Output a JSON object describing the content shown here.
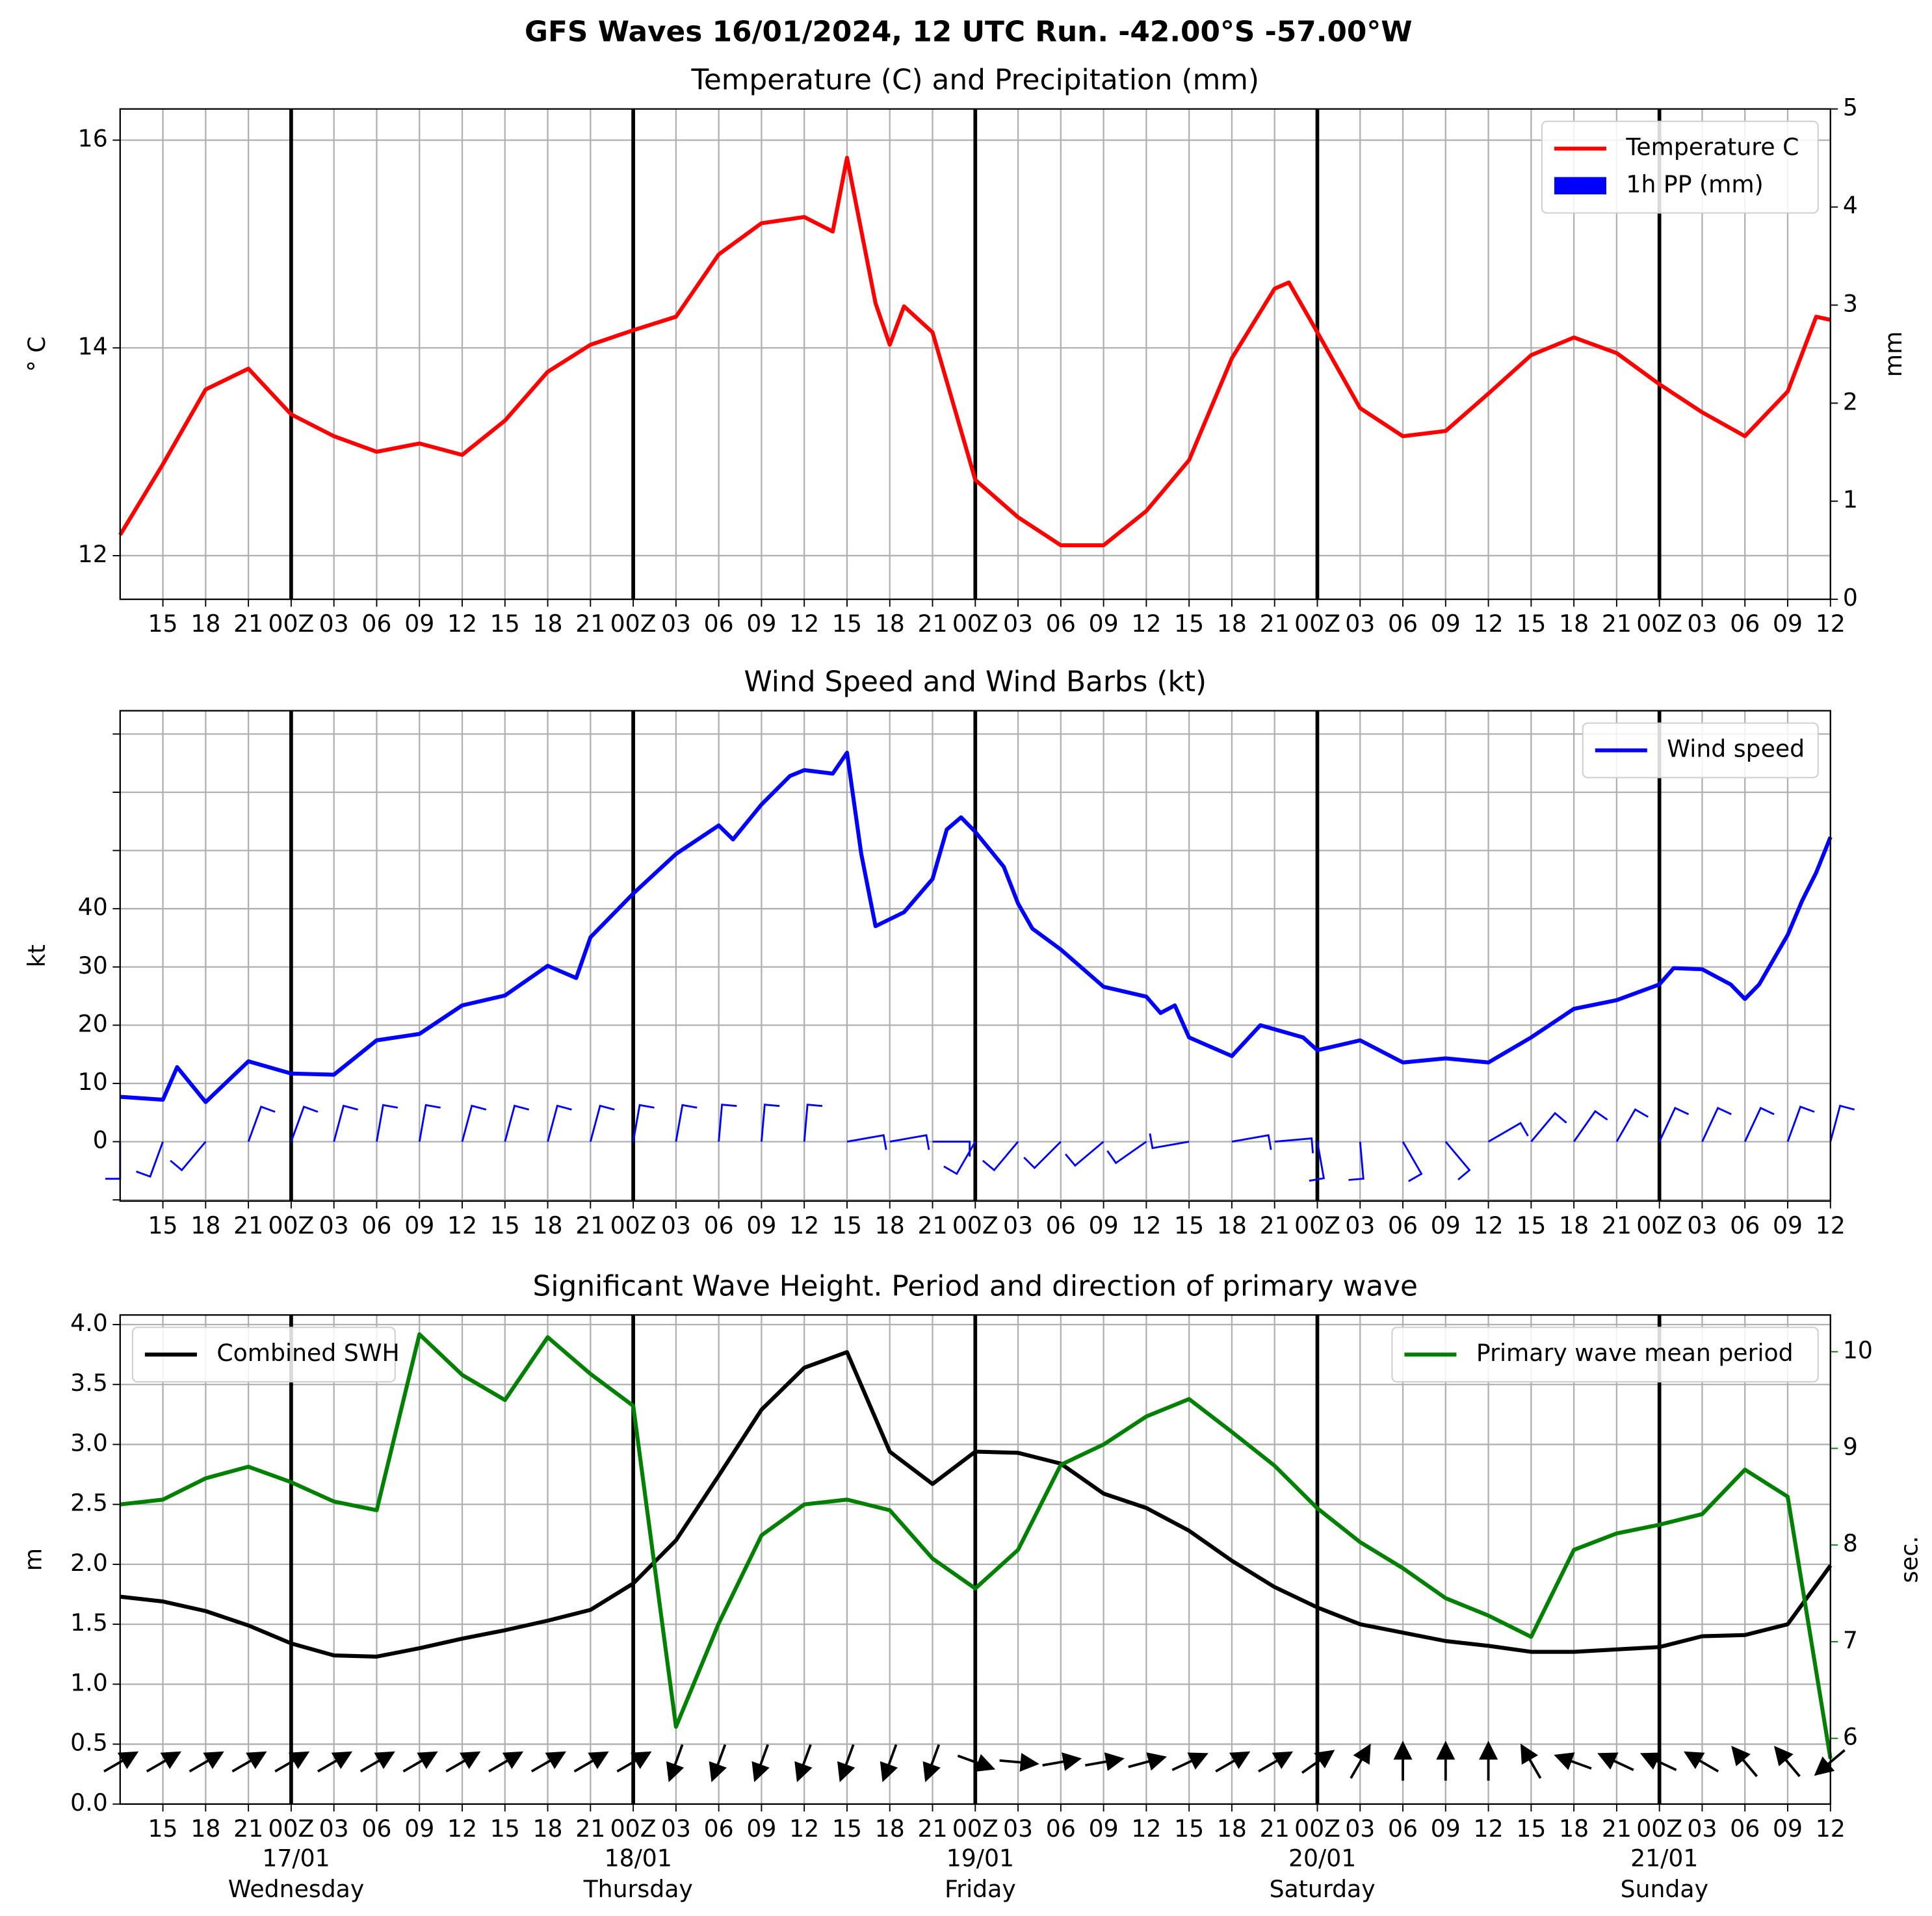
{
  "title": "GFS Waves 16/01/2024, 12 UTC Run. -42.00°S -57.00°W",
  "x_axis": {
    "xlim": [
      0,
      120
    ],
    "xticks": [
      {
        "value": 3,
        "label": "15"
      },
      {
        "value": 6,
        "label": "18"
      },
      {
        "value": 9,
        "label": "21"
      },
      {
        "value": 12,
        "label": "00Z"
      },
      {
        "value": 15,
        "label": "03"
      },
      {
        "value": 18,
        "label": "06"
      },
      {
        "value": 21,
        "label": "09"
      },
      {
        "value": 24,
        "label": "12"
      },
      {
        "value": 27,
        "label": "15"
      },
      {
        "value": 30,
        "label": "18"
      },
      {
        "value": 33,
        "label": "21"
      },
      {
        "value": 36,
        "label": "00Z"
      },
      {
        "value": 39,
        "label": "03"
      },
      {
        "value": 42,
        "label": "06"
      },
      {
        "value": 45,
        "label": "09"
      },
      {
        "value": 48,
        "label": "12"
      },
      {
        "value": 51,
        "label": "15"
      },
      {
        "value": 54,
        "label": "18"
      },
      {
        "value": 57,
        "label": "21"
      },
      {
        "value": 60,
        "label": "00Z"
      },
      {
        "value": 63,
        "label": "03"
      },
      {
        "value": 66,
        "label": "06"
      },
      {
        "value": 69,
        "label": "09"
      },
      {
        "value": 72,
        "label": "12"
      },
      {
        "value": 75,
        "label": "15"
      },
      {
        "value": 78,
        "label": "18"
      },
      {
        "value": 81,
        "label": "21"
      },
      {
        "value": 84,
        "label": "00Z"
      },
      {
        "value": 87,
        "label": "03"
      },
      {
        "value": 90,
        "label": "06"
      },
      {
        "value": 93,
        "label": "09"
      },
      {
        "value": 96,
        "label": "12"
      },
      {
        "value": 99,
        "label": "15"
      },
      {
        "value": 102,
        "label": "18"
      },
      {
        "value": 105,
        "label": "21"
      },
      {
        "value": 108,
        "label": "00Z"
      },
      {
        "value": 111,
        "label": "03"
      },
      {
        "value": 114,
        "label": "06"
      },
      {
        "value": 117,
        "label": "09"
      },
      {
        "value": 120,
        "label": "12"
      }
    ],
    "day_lines": [
      12,
      36,
      60,
      84,
      108
    ],
    "day_labels": [
      {
        "x": 12,
        "date": "17/01",
        "weekday": "Wednesday"
      },
      {
        "x": 36,
        "date": "18/01",
        "weekday": "Thursday"
      },
      {
        "x": 60,
        "date": "19/01",
        "weekday": "Friday"
      },
      {
        "x": 84,
        "date": "20/01",
        "weekday": "Saturday"
      },
      {
        "x": 108,
        "date": "21/01",
        "weekday": "Sunday"
      }
    ]
  },
  "chart_data": [
    {
      "type": "line",
      "title": "Temperature (C) and Precipitation (mm)",
      "ylabel": "° C",
      "y2label": "mm",
      "ylim": [
        11.58,
        16.3
      ],
      "yticks": [
        12,
        14,
        16
      ],
      "y2lim": [
        0,
        5
      ],
      "y2ticks": [
        0,
        1,
        2,
        3,
        4,
        5
      ],
      "grid": true,
      "legend": "upper right",
      "series": [
        {
          "name": "Temperature C",
          "color": "red",
          "x": [
            0,
            3,
            6,
            9,
            12,
            15,
            18,
            21,
            24,
            27,
            30,
            33,
            36,
            39,
            42,
            45,
            48,
            50,
            51,
            53,
            54,
            55,
            57,
            60,
            63,
            66,
            69,
            72,
            75,
            78,
            81,
            82,
            84,
            87,
            90,
            93,
            96,
            99,
            102,
            105,
            108,
            111,
            114,
            117,
            119,
            120
          ],
          "values": [
            12.2,
            12.88,
            13.6,
            13.8,
            13.36,
            13.15,
            13.0,
            13.08,
            12.97,
            13.3,
            13.77,
            14.03,
            14.17,
            14.3,
            14.9,
            15.2,
            15.26,
            15.12,
            15.83,
            14.43,
            14.03,
            14.4,
            14.15,
            12.73,
            12.37,
            12.1,
            12.1,
            12.43,
            12.92,
            13.9,
            14.57,
            14.63,
            14.15,
            13.42,
            13.15,
            13.2,
            13.56,
            13.93,
            14.1,
            13.95,
            13.65,
            13.38,
            13.15,
            13.58,
            14.3,
            14.27
          ]
        },
        {
          "name": "1h PP (mm)",
          "color": "blue",
          "type": "bar",
          "axis": "y2",
          "x": [
            0,
            3,
            6,
            9,
            12,
            15,
            18,
            21,
            24,
            27,
            30,
            33,
            36,
            39,
            42,
            45,
            48,
            51,
            54,
            57,
            60,
            63,
            66,
            69,
            72,
            75,
            78,
            81,
            84,
            87,
            90,
            93,
            96,
            99,
            102,
            105,
            108,
            111,
            114,
            117,
            120
          ],
          "values": [
            0,
            0,
            0,
            0,
            0,
            0,
            0,
            0,
            0,
            0,
            0,
            0,
            0,
            0,
            0,
            0,
            0,
            0,
            0,
            0,
            0,
            0,
            0,
            0,
            0,
            0,
            0,
            0,
            0,
            0,
            0,
            0,
            0,
            0,
            0,
            0,
            0,
            0,
            0,
            0,
            0
          ]
        }
      ]
    },
    {
      "type": "line",
      "title": "Wind Speed and Wind Barbs (kt)",
      "ylabel": "kt",
      "ylim": [
        -10.2,
        74
      ],
      "yticks": [
        0,
        10,
        20,
        30,
        40
      ],
      "minor_yticks": [
        -10,
        50,
        60,
        70
      ],
      "grid": true,
      "legend": "upper right",
      "series": [
        {
          "name": "Wind speed",
          "color": "blue",
          "x": [
            0,
            3,
            4,
            6,
            9,
            12,
            15,
            18,
            21,
            24,
            27,
            30,
            32,
            33,
            36,
            39,
            42,
            43,
            45,
            47,
            48,
            50,
            51,
            52,
            53,
            55,
            57,
            58,
            59,
            60,
            62,
            63,
            64,
            66,
            69,
            72,
            73,
            74,
            75,
            78,
            80,
            83,
            84,
            87,
            90,
            93,
            96,
            99,
            102,
            105,
            108,
            109,
            111,
            113,
            114,
            115,
            117,
            118,
            119,
            120
          ],
          "values": [
            7.7,
            7.2,
            12.8,
            6.8,
            13.8,
            11.7,
            11.5,
            17.4,
            18.5,
            23.4,
            25.1,
            30.2,
            28.1,
            35.1,
            42.6,
            49.4,
            54.3,
            51.9,
            57.9,
            62.8,
            63.8,
            63.2,
            66.8,
            49.4,
            37.0,
            39.4,
            45.1,
            53.6,
            55.7,
            53.2,
            47.2,
            40.9,
            36.6,
            33.0,
            26.6,
            24.9,
            22.1,
            23.4,
            17.9,
            14.7,
            20.0,
            17.9,
            15.7,
            17.4,
            13.6,
            14.3,
            13.6,
            17.9,
            22.8,
            24.3,
            27.0,
            29.8,
            29.6,
            27.0,
            24.5,
            27.0,
            35.5,
            41.3,
            46.2,
            52.3
          ]
        }
      ],
      "barbs": {
        "color": "blue",
        "x": [
          0,
          3,
          6,
          9,
          12,
          15,
          18,
          21,
          24,
          27,
          30,
          33,
          36,
          39,
          42,
          45,
          48,
          51,
          54,
          57,
          60,
          63,
          66,
          69,
          72,
          75,
          78,
          81,
          84,
          87,
          90,
          93,
          96,
          99,
          102,
          105,
          108,
          111,
          114,
          117,
          120
        ],
        "direction": [
          180,
          200,
          220,
          20,
          20,
          15,
          10,
          10,
          15,
          15,
          15,
          15,
          10,
          10,
          5,
          5,
          5,
          80,
          80,
          90,
          210,
          220,
          225,
          230,
          235,
          260,
          80,
          85,
          170,
          175,
          150,
          140,
          60,
          40,
          35,
          30,
          25,
          25,
          25,
          20,
          15
        ]
      }
    },
    {
      "type": "line",
      "title": "Significant Wave Height. Period and direction of primary wave",
      "ylabel": "m",
      "y2label": "sec.",
      "y2color": "green",
      "ylim": [
        0,
        4.08
      ],
      "yticks": [
        {
          "value": 0,
          "label": "0.0"
        },
        0.5,
        {
          "value": 1,
          "label": "1.0"
        },
        1.5,
        {
          "value": 2,
          "label": "2.0"
        },
        2.5,
        {
          "value": 3,
          "label": "3.0"
        },
        3.5,
        {
          "value": 4,
          "label": "4.0"
        }
      ],
      "y2lim": [
        5.32,
        10.38
      ],
      "y2ticks": [
        6,
        7,
        8,
        9,
        10
      ],
      "grid": true,
      "legend": "upper left",
      "legend_y2": "upper right",
      "x": [
        0,
        3,
        6,
        9,
        12,
        15,
        18,
        21,
        24,
        27,
        30,
        33,
        36,
        39,
        42,
        45,
        48,
        51,
        54,
        57,
        60,
        63,
        66,
        69,
        72,
        75,
        78,
        81,
        84,
        87,
        90,
        93,
        96,
        99,
        102,
        105,
        108,
        111,
        114,
        117,
        120
      ],
      "series": [
        {
          "name": "Combined SWH",
          "color": "black",
          "values": [
            1.73,
            1.69,
            1.61,
            1.49,
            1.34,
            1.24,
            1.23,
            1.3,
            1.38,
            1.45,
            1.53,
            1.62,
            1.84,
            2.2,
            2.74,
            3.29,
            3.64,
            3.77,
            2.94,
            2.67,
            2.94,
            2.93,
            2.84,
            2.59,
            2.47,
            2.28,
            2.03,
            1.81,
            1.64,
            1.5,
            1.43,
            1.36,
            1.32,
            1.27,
            1.27,
            1.29,
            1.31,
            1.4,
            1.41,
            1.5,
            1.99
          ]
        },
        {
          "name": "Primary wave mean period",
          "color": "green",
          "axis": "y2",
          "values": [
            8.42,
            8.47,
            8.69,
            8.81,
            8.65,
            8.45,
            8.36,
            10.18,
            9.76,
            9.5,
            10.15,
            9.77,
            9.44,
            6.12,
            7.19,
            8.1,
            8.42,
            8.47,
            8.36,
            7.86,
            7.55,
            7.95,
            8.83,
            9.04,
            9.33,
            9.51,
            9.17,
            8.82,
            8.38,
            8.03,
            7.76,
            7.45,
            7.27,
            7.05,
            7.95,
            8.12,
            8.21,
            8.32,
            8.78,
            8.5,
            5.79
          ]
        }
      ],
      "arrows": {
        "color": "black",
        "direction": [
          60,
          60,
          60,
          60,
          60,
          60,
          60,
          60,
          60,
          60,
          60,
          60,
          60,
          200,
          200,
          200,
          200,
          200,
          200,
          200,
          110,
          95,
          80,
          80,
          75,
          65,
          60,
          60,
          55,
          30,
          0,
          0,
          0,
          330,
          290,
          295,
          295,
          300,
          320,
          320,
          230
        ]
      }
    }
  ]
}
